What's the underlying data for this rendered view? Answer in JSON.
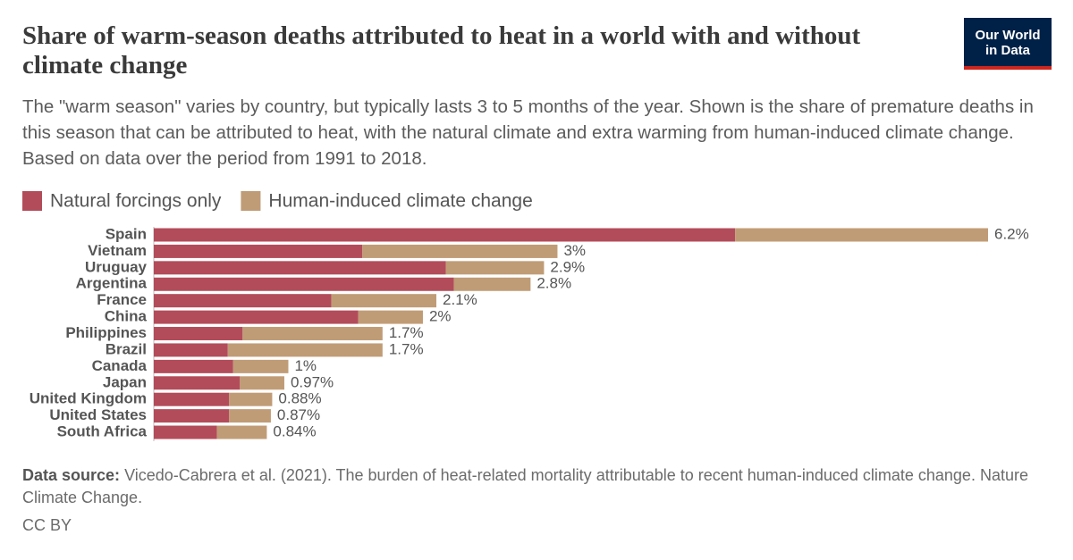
{
  "chart_data": {
    "type": "stacked-bar-horizontal",
    "title": "Share of warm-season deaths attributed to heat in a world with and without climate change",
    "subtitle": "The \"warm season\" varies by country, but typically lasts 3 to 5 months of the year. Shown is the share of premature deaths in this season that can be attributed to heat, with the natural climate and extra warming from human-induced climate change. Based on data over the period from 1991 to 2018.",
    "categories": [
      "Spain",
      "Vietnam",
      "Uruguay",
      "Argentina",
      "France",
      "China",
      "Philippines",
      "Brazil",
      "Canada",
      "Japan",
      "United Kingdom",
      "United States",
      "South Africa"
    ],
    "series": [
      {
        "name": "Natural forcings only",
        "color": "#b34c5a",
        "values": [
          4.32,
          1.55,
          2.17,
          2.23,
          1.32,
          1.52,
          0.66,
          0.55,
          0.59,
          0.64,
          0.56,
          0.56,
          0.47
        ]
      },
      {
        "name": "Human-induced climate change",
        "color": "#c09c76",
        "values": [
          1.88,
          1.45,
          0.73,
          0.57,
          0.78,
          0.48,
          1.04,
          1.15,
          0.41,
          0.33,
          0.32,
          0.31,
          0.37
        ]
      }
    ],
    "totals": [
      6.2,
      3,
      2.9,
      2.8,
      2.1,
      2,
      1.7,
      1.7,
      1,
      0.97,
      0.88,
      0.87,
      0.84
    ],
    "total_labels": [
      "6.2%",
      "3%",
      "2.9%",
      "2.8%",
      "2.1%",
      "2%",
      "1.7%",
      "1.7%",
      "1%",
      "0.97%",
      "0.88%",
      "0.87%",
      "0.84%"
    ],
    "source_label": "Data source:",
    "source": "Vicedo-Cabrera et al. (2021). The burden of heat-related mortality attributable to recent human-induced climate change. Nature Climate Change.",
    "license": "CC BY",
    "logo": [
      "Our World",
      "in Data"
    ]
  }
}
